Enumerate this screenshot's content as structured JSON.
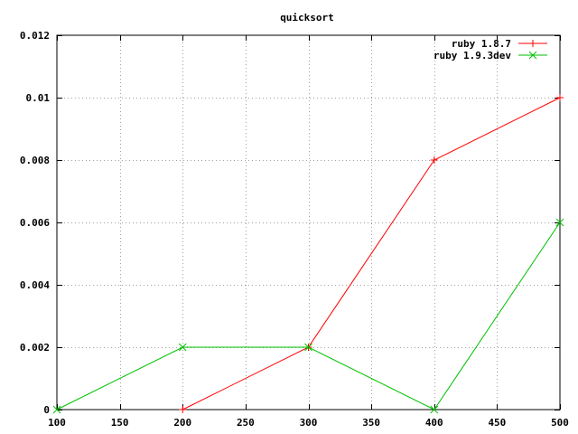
{
  "chart_data": {
    "type": "line",
    "title": "quicksort",
    "xlabel": "",
    "ylabel": "",
    "xlim": [
      100,
      500
    ],
    "ylim": [
      0,
      0.012
    ],
    "x_ticks": [
      100,
      150,
      200,
      250,
      300,
      350,
      400,
      450,
      500
    ],
    "x_tick_labels": [
      "100",
      "150",
      "200",
      "250",
      "300",
      "350",
      "400",
      "450",
      "500"
    ],
    "y_ticks": [
      0,
      0.002,
      0.004,
      0.006,
      0.008,
      0.01,
      0.012
    ],
    "y_tick_labels": [
      "0",
      "0.002",
      "0.004",
      "0.006",
      "0.008",
      "0.01",
      "0.012"
    ],
    "grid": true,
    "legend_position": "top-right",
    "series": [
      {
        "name": "ruby 1.8.7",
        "color": "#ff0000",
        "marker": "plus",
        "x": [
          200,
          300,
          400,
          500
        ],
        "y": [
          0,
          0.002,
          0.008,
          0.01
        ]
      },
      {
        "name": "ruby 1.9.3dev",
        "color": "#00c000",
        "marker": "cross",
        "x": [
          100,
          200,
          300,
          400,
          500
        ],
        "y": [
          0,
          0.002,
          0.002,
          0,
          0.006
        ]
      }
    ]
  }
}
